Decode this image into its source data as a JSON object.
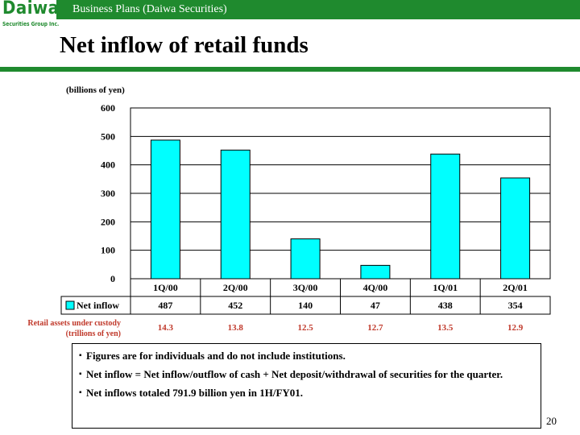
{
  "header": {
    "logo_word": "Daiwa",
    "logo_sub": "Securities Group Inc.",
    "band_text": "Business Plans (Daiwa Securities)",
    "brand_color": "#1f8a2e"
  },
  "page_title": "Net inflow of retail funds",
  "chart_data": {
    "type": "bar",
    "title": "",
    "xlabel": "",
    "ylabel": "(billions of yen)",
    "categories": [
      "1Q/00",
      "2Q/00",
      "3Q/00",
      "4Q/00",
      "1Q/01",
      "2Q/01"
    ],
    "series": [
      {
        "name": "Net inflow",
        "values": [
          487,
          452,
          140,
          47,
          438,
          354
        ],
        "color": "#00ffff"
      }
    ],
    "ylim": [
      0,
      600
    ],
    "yticks": [
      0,
      100,
      200,
      300,
      400,
      500,
      600
    ],
    "grid": true,
    "legend": "data-table-left",
    "data_table": true
  },
  "custody": {
    "label_line1": "Retail assets under custody",
    "label_line2": "(trillions of yen)",
    "values": [
      "14.3",
      "13.8",
      "12.5",
      "12.7",
      "13.5",
      "12.9"
    ],
    "color": "#c0392b"
  },
  "notes": [
    "Figures are for individuals and do not include institutions.",
    "Net inflow = Net inflow/outflow of cash + Net deposit/withdrawal of securities for the quarter.",
    "Net inflows totaled 791.9 billion yen in 1H/FY01."
  ],
  "bullet": "▪",
  "page_number": "20"
}
